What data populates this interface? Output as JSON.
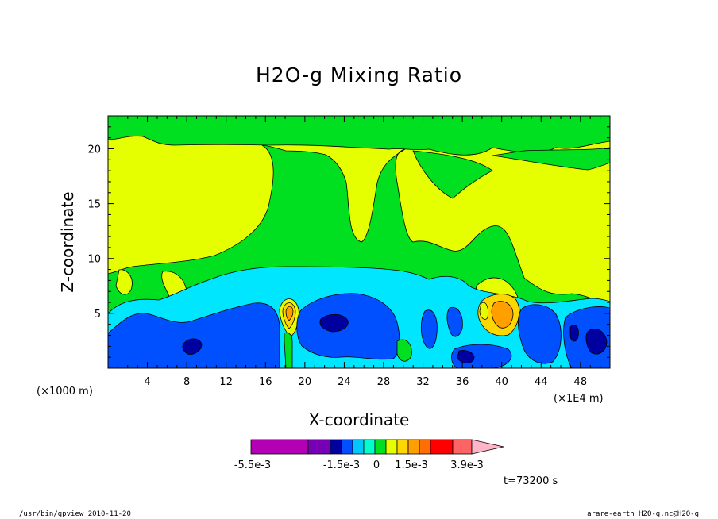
{
  "chart_data": {
    "type": "heatmap",
    "title": "H2O-g Mixing Ratio",
    "xlabel": "X-coordinate",
    "ylabel": "Z-coordinate",
    "x_unit_left": "(×1000 m)",
    "x_unit_right": "(×1E4 m)",
    "xlim": [
      0,
      51
    ],
    "ylim": [
      0,
      23
    ],
    "xticks": [
      4,
      8,
      12,
      16,
      20,
      24,
      28,
      32,
      36,
      40,
      44,
      48
    ],
    "yticks": [
      5,
      10,
      15,
      20
    ],
    "time_label": "t=73200 s",
    "colorbar": {
      "labels": [
        "-5.5e-3",
        "-1.5e-3",
        "0",
        "1.5e-3",
        "3.9e-3"
      ],
      "colors": [
        "#b400b4",
        "#7800b4",
        "#0000a0",
        "#0050ff",
        "#00c8ff",
        "#00ffcc",
        "#00e020",
        "#e6ff00",
        "#ffd700",
        "#ffa000",
        "#ff6e00",
        "#ff0000",
        "#ff6464",
        "#ffb4c8"
      ]
    },
    "levels": {
      "background_top": "#e6ff00",
      "green": "#00e020",
      "cyan": "#00e6ff",
      "blue": "#0050ff",
      "navy": "#0000a0",
      "orange": "#ffa000",
      "lightorange": "#ffd700"
    }
  },
  "footer": {
    "left": "/usr/bin/gpview   2010-11-20",
    "right": "arare-earth_H2O-g.nc@H2O-g"
  }
}
